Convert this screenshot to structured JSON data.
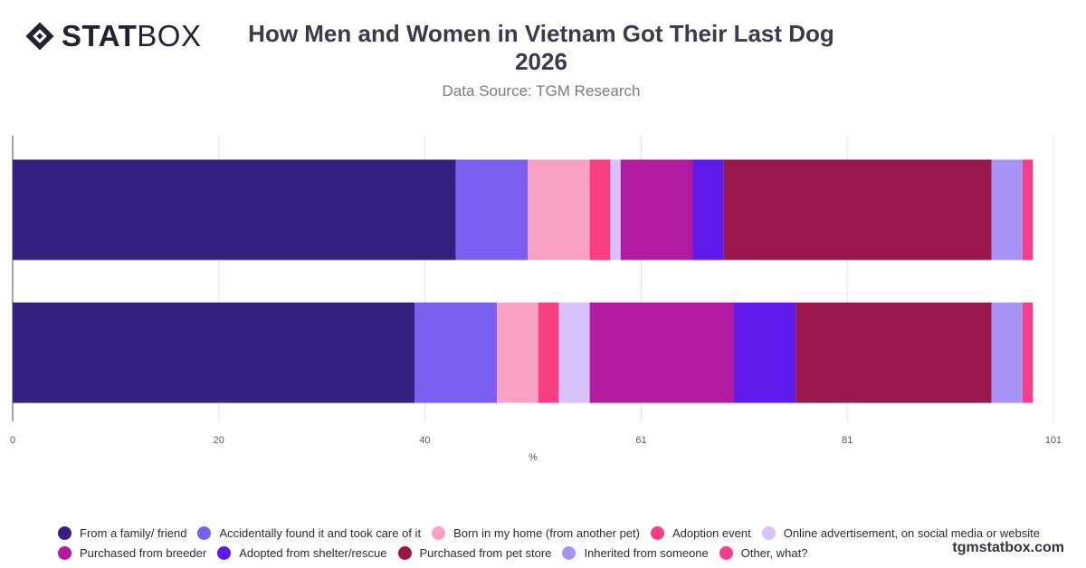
{
  "brand": {
    "logo_bold": "STAT",
    "logo_light": "BOX",
    "website": "tgmstatbox.com"
  },
  "chart_data": {
    "type": "bar",
    "orientation": "horizontal",
    "stacked": true,
    "title_line1": "How Men and Women in Vietnam Got Their Last Dog",
    "title_line2": "2026",
    "subtitle": "Data Source: TGM Research",
    "xlabel": "%",
    "ylabel": "",
    "xlim": [
      0,
      101
    ],
    "xticks": [
      0,
      20,
      40,
      61,
      81,
      101
    ],
    "grid": true,
    "legend_position": "bottom",
    "categories": [
      "",
      ""
    ],
    "series": [
      {
        "name": "From a family/ friend",
        "color": "#35207f",
        "values": [
          43,
          39
        ]
      },
      {
        "name": "Accidentally found it and took care of it",
        "color": "#7b5ef0",
        "values": [
          7,
          8
        ]
      },
      {
        "name": "Born in my home (from another pet)",
        "color": "#f8a1c4",
        "values": [
          6,
          4
        ]
      },
      {
        "name": "Adoption event",
        "color": "#f83f84",
        "values": [
          2,
          2
        ]
      },
      {
        "name": "Online advertisement, on social media or website",
        "color": "#d7c2fb",
        "values": [
          1,
          3
        ]
      },
      {
        "name": "Purchased from breeder",
        "color": "#b21aa0",
        "values": [
          7,
          14
        ]
      },
      {
        "name": "Adopted from shelter/rescue",
        "color": "#5d1aea",
        "values": [
          3,
          6
        ]
      },
      {
        "name": "Purchased from pet store",
        "color": "#9a174b",
        "values": [
          26,
          19
        ]
      },
      {
        "name": "Inherited from someone",
        "color": "#a794f6",
        "values": [
          3,
          3
        ]
      },
      {
        "name": "Other, what?",
        "color": "#f73c8c",
        "values": [
          1,
          1
        ]
      }
    ]
  }
}
